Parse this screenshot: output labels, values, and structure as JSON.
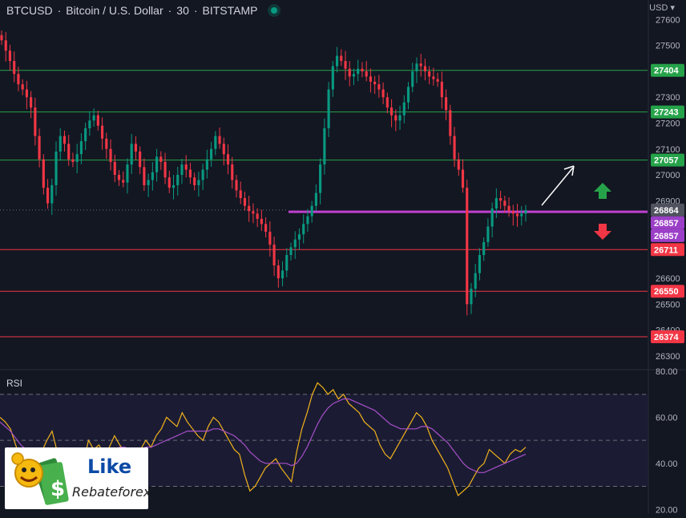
{
  "header": {
    "symbol": "BTCUSD",
    "separator": "·",
    "name": "Bitcoin / U.S. Dollar",
    "interval": "30",
    "exchange": "BITSTAMP",
    "currency": "USD"
  },
  "logo": {
    "line1": "Like",
    "line2": "Rebateforex"
  },
  "colors": {
    "background": "#131722",
    "up": "#089981",
    "down": "#f23645",
    "support_line": "#f23645",
    "resistance_line": "#26a34a",
    "current_line": "#c040d0",
    "rsi": "#f2b21c",
    "rsi_ma": "#a84fc9"
  },
  "chart_data": [
    {
      "type": "candlestick",
      "ylim": [
        26250,
        27620
      ],
      "yticks": [
        27600,
        27500,
        27400,
        27300,
        27200,
        27100,
        27000,
        26900,
        26800,
        26700,
        26600,
        26500,
        26400,
        26300
      ],
      "ytick_labels": [
        "27600",
        "27500",
        "",
        "27300",
        "27200",
        "27100",
        "27000",
        "26900",
        "",
        "",
        "26600",
        "26500",
        "26400",
        "26300"
      ],
      "horizontal_levels": [
        {
          "value": 27404,
          "label": "27404",
          "kind": "resistance"
        },
        {
          "value": 27243,
          "label": "27243",
          "kind": "resistance"
        },
        {
          "value": 27057,
          "label": "27057",
          "kind": "resistance"
        },
        {
          "value": 26711,
          "label": "26711",
          "kind": "support"
        },
        {
          "value": 26550,
          "label": "26550",
          "kind": "support"
        },
        {
          "value": 26374,
          "label": "26374",
          "kind": "support"
        }
      ],
      "price_tags": [
        {
          "value": 26864,
          "label": "26864",
          "kind": "last"
        },
        {
          "value": 26857,
          "label": "26857",
          "kind": "purple"
        },
        {
          "value": 26857,
          "label": "26857",
          "kind": "purple"
        }
      ],
      "current_level": 26857,
      "close_series": [
        27520,
        27480,
        27440,
        27390,
        27350,
        27330,
        27300,
        27260,
        27150,
        27060,
        26950,
        26890,
        26960,
        27090,
        27150,
        27120,
        27060,
        27050,
        27080,
        27130,
        27180,
        27210,
        27230,
        27190,
        27140,
        27100,
        27050,
        27000,
        26980,
        26970,
        27040,
        27120,
        27090,
        27030,
        26960,
        26980,
        27010,
        27070,
        27050,
        26990,
        26950,
        26960,
        27000,
        27040,
        27020,
        26990,
        26960,
        26980,
        27020,
        27060,
        27100,
        27150,
        27120,
        27080,
        27040,
        26980,
        26940,
        26910,
        26880,
        26860,
        26850,
        26830,
        26810,
        26780,
        26730,
        26650,
        26600,
        26630,
        26690,
        26720,
        26750,
        26770,
        26810,
        26840,
        26880,
        26930,
        27040,
        27180,
        27330,
        27420,
        27460,
        27440,
        27410,
        27380,
        27390,
        27410,
        27400,
        27380,
        27360,
        27350,
        27330,
        27300,
        27260,
        27230,
        27210,
        27230,
        27280,
        27340,
        27400,
        27430,
        27420,
        27400,
        27380,
        27370,
        27360,
        27300,
        27250,
        27150,
        27060,
        27020,
        26950,
        26500,
        26560,
        26620,
        26690,
        26740,
        26800,
        26870,
        26910,
        26900,
        26880,
        26860,
        26850,
        26840,
        26850,
        26864
      ],
      "pattern_annotations": [
        "arrow-up-diagonal",
        "arrow-up-green",
        "arrow-down-red"
      ]
    },
    {
      "type": "line",
      "title": "RSI",
      "ylim": [
        18,
        80
      ],
      "yticks": [
        80,
        60,
        40,
        20
      ],
      "ytick_labels": [
        "80.00",
        "60.00",
        "40.00",
        "20.00"
      ],
      "bands": [
        70,
        50,
        30
      ],
      "series": [
        {
          "values": [
            60,
            58,
            55,
            48,
            42,
            40,
            38,
            37,
            45,
            50,
            54,
            45,
            40,
            38,
            42,
            44,
            40,
            50,
            46,
            48,
            44,
            47,
            52,
            48,
            45,
            42,
            44,
            46,
            50,
            47,
            52,
            55,
            60,
            58,
            56,
            62,
            58,
            55,
            52,
            50,
            56,
            60,
            58,
            54,
            50,
            46,
            44,
            35,
            28,
            30,
            34,
            38,
            40,
            42,
            38,
            35,
            32,
            45,
            55,
            62,
            70,
            75,
            73,
            70,
            72,
            68,
            70,
            66,
            64,
            62,
            58,
            56,
            54,
            48,
            44,
            42,
            46,
            50,
            54,
            58,
            62,
            60,
            56,
            50,
            46,
            42,
            38,
            32,
            26,
            28,
            30,
            34,
            38,
            40,
            46,
            44,
            42,
            40,
            44,
            46,
            45,
            47
          ],
          "color": "#f2b21c"
        },
        {
          "values": [
            58,
            56,
            54,
            51,
            48,
            46,
            44,
            43,
            43,
            44,
            45,
            45,
            44,
            43,
            43,
            43,
            43,
            44,
            44,
            45,
            45,
            46,
            46,
            47,
            47,
            46,
            46,
            46,
            47,
            47,
            48,
            49,
            50,
            51,
            52,
            53,
            54,
            54,
            54,
            54,
            54,
            55,
            55,
            54,
            53,
            52,
            50,
            48,
            45,
            43,
            41,
            40,
            40,
            40,
            40,
            40,
            39,
            40,
            43,
            47,
            52,
            57,
            61,
            64,
            66,
            67,
            68,
            68,
            67,
            66,
            65,
            64,
            63,
            61,
            59,
            57,
            56,
            55,
            55,
            55,
            55,
            56,
            56,
            55,
            53,
            51,
            49,
            46,
            43,
            40,
            38,
            37,
            36,
            36,
            37,
            38,
            39,
            40,
            41,
            42,
            43,
            44
          ],
          "color": "#a84fc9"
        }
      ]
    }
  ]
}
